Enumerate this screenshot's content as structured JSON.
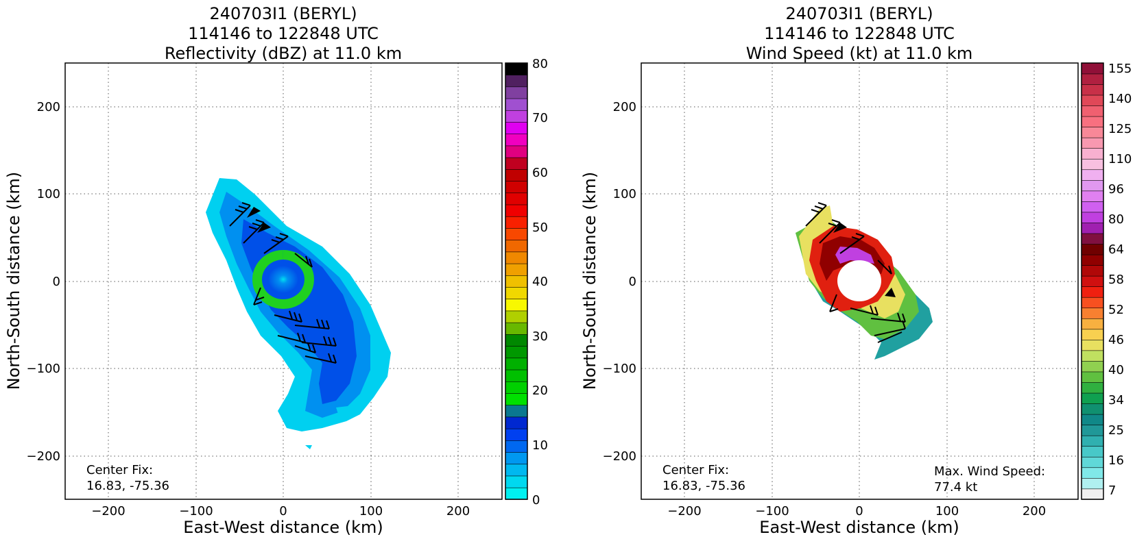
{
  "figure": {
    "panels": [
      {
        "title_lines": [
          "240703I1 (BERYL)",
          "114146 to 122848 UTC",
          "Reflectivity (dBZ) at 11.0 km"
        ],
        "xlabel": "East-West distance (km)",
        "ylabel": "North-South distance (km)",
        "center_fix_label": "Center Fix:",
        "center_fix_value": "16.83, -75.36",
        "colorbar_ticks": [
          "0",
          "10",
          "20",
          "30",
          "40",
          "50",
          "60",
          "70",
          "80"
        ],
        "colorbar_colors": [
          "#00f0f0",
          "#00d8f0",
          "#00b8f0",
          "#0098f0",
          "#0068f0",
          "#0040f0",
          "#0028d0",
          "#0a7890",
          "#00e000",
          "#00d000",
          "#00c000",
          "#00b000",
          "#009800",
          "#008800",
          "#68b800",
          "#b0d000",
          "#f8f800",
          "#f0d800",
          "#f0c000",
          "#f0a000",
          "#f08800",
          "#f06800",
          "#f84800",
          "#f82000",
          "#f00000",
          "#e00000",
          "#d00000",
          "#c00000",
          "#c00020",
          "#e00080",
          "#f000c0",
          "#e000f0",
          "#c040e0",
          "#a050d0",
          "#8040a0",
          "#502060",
          "#000000"
        ]
      },
      {
        "title_lines": [
          "240703I1 (BERYL)",
          "114146 to 122848 UTC",
          "Wind Speed (kt) at 11.0 km"
        ],
        "xlabel": "East-West distance (km)",
        "ylabel": "North-South distance (km)",
        "center_fix_label": "Center Fix:",
        "center_fix_value": "16.83, -75.36",
        "max_wind_label": "Max. Wind Speed:",
        "max_wind_value": "77.4 kt",
        "colorbar_ticks": [
          "7",
          "16",
          "25",
          "34",
          "40",
          "46",
          "52",
          "58",
          "64",
          "80",
          "96",
          "110",
          "125",
          "140",
          "155"
        ],
        "colorbar_colors": [
          "#f0f0f0",
          "#b0f0f0",
          "#80e8e8",
          "#60d8d8",
          "#48c8c8",
          "#30b0b0",
          "#209898",
          "#108888",
          "#109070",
          "#10a050",
          "#30b040",
          "#60c040",
          "#90d050",
          "#c0e060",
          "#e8e060",
          "#f8d050",
          "#f8b040",
          "#f88030",
          "#f85020",
          "#f02010",
          "#d01010",
          "#b00808",
          "#900000",
          "#700000",
          "#801040",
          "#a020b0",
          "#c040e0",
          "#d060f0",
          "#e080f0",
          "#e098f0",
          "#f0b0f0",
          "#f8c0e0",
          "#f8b0d0",
          "#f898b0",
          "#f88898",
          "#f87080",
          "#f06070",
          "#e04858",
          "#c83048",
          "#b02040",
          "#901038"
        ]
      }
    ],
    "x_ticks": [
      "−200",
      "−100",
      "0",
      "100",
      "200"
    ],
    "y_ticks": [
      "200",
      "100",
      "0",
      "−100",
      "−200"
    ]
  },
  "chart_data": [
    {
      "type": "heatmap",
      "title": "240703I1 (BERYL) 114146 to 122848 UTC Reflectivity (dBZ) at 11.0 km",
      "xlabel": "East-West distance (km)",
      "ylabel": "North-South distance (km)",
      "xlim": [
        -250,
        250
      ],
      "ylim": [
        -250,
        250
      ],
      "xticks": [
        -200,
        -100,
        0,
        100,
        200
      ],
      "yticks": [
        -200,
        -100,
        0,
        100,
        200
      ],
      "grid": true,
      "colorbar": {
        "min": 0,
        "max": 80,
        "ticks": [
          0,
          10,
          20,
          30,
          40,
          50,
          60,
          70,
          80
        ]
      },
      "center_fix": [
        16.83,
        -75.36
      ]
    },
    {
      "type": "heatmap",
      "title": "240703I1 (BERYL) 114146 to 122848 UTC Wind Speed (kt) at 11.0 km",
      "xlabel": "East-West distance (km)",
      "ylabel": "North-South distance (km)",
      "xlim": [
        -250,
        250
      ],
      "ylim": [
        -250,
        250
      ],
      "xticks": [
        -200,
        -100,
        0,
        100,
        200
      ],
      "yticks": [
        -200,
        -100,
        0,
        100,
        200
      ],
      "grid": true,
      "colorbar": {
        "ticks": [
          7,
          16,
          25,
          34,
          40,
          46,
          52,
          58,
          64,
          80,
          96,
          110,
          125,
          140,
          155
        ]
      },
      "center_fix": [
        16.83,
        -75.36
      ],
      "max_wind_speed_kt": 77.4
    }
  ]
}
